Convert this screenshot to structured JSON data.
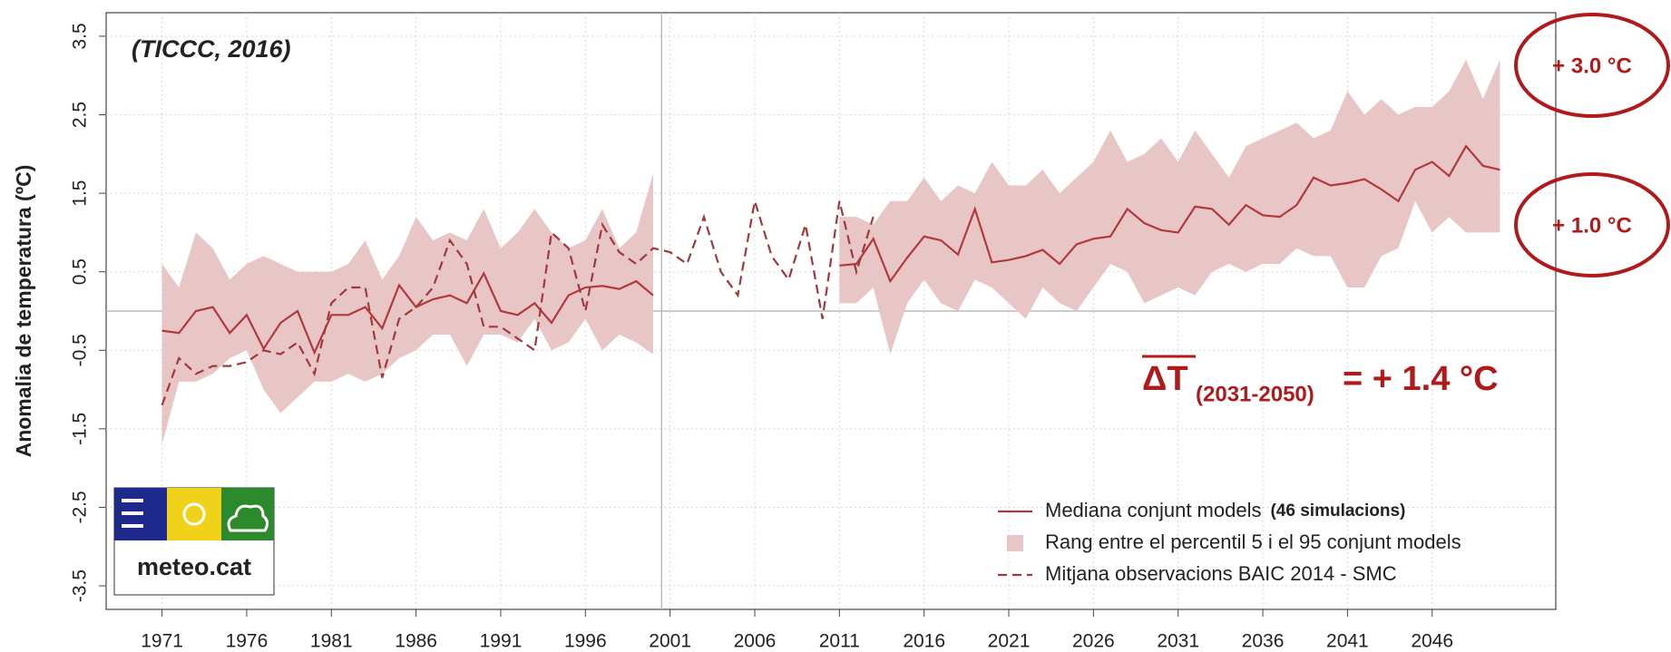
{
  "chart_data": {
    "type": "line",
    "title": "(TICCC, 2016)",
    "y_label": "Anomalia de temperatura (ºC)",
    "x": [
      1971,
      1972,
      1973,
      1974,
      1975,
      1976,
      1977,
      1978,
      1979,
      1980,
      1981,
      1982,
      1983,
      1984,
      1985,
      1986,
      1987,
      1988,
      1989,
      1990,
      1991,
      1992,
      1993,
      1994,
      1995,
      1996,
      1997,
      1998,
      1999,
      2000,
      2001,
      2002,
      2003,
      2004,
      2005,
      2006,
      2007,
      2008,
      2009,
      2010,
      2011,
      2012,
      2013,
      2014,
      2015,
      2016,
      2017,
      2018,
      2019,
      2020,
      2021,
      2022,
      2023,
      2024,
      2025,
      2026,
      2027,
      2028,
      2029,
      2030,
      2031,
      2032,
      2033,
      2034,
      2035,
      2036,
      2037,
      2038,
      2039,
      2040,
      2041,
      2042,
      2043,
      2044,
      2045,
      2046,
      2047,
      2048,
      2049,
      2050
    ],
    "band": {
      "name": "Rang entre el percentil 5 i el 95 conjunt models",
      "color": "#e9c6c6",
      "upper": [
        0.6,
        0.3,
        1.0,
        0.8,
        0.4,
        0.6,
        0.7,
        0.6,
        0.5,
        0.5,
        0.5,
        0.6,
        0.9,
        0.4,
        0.7,
        1.2,
        0.9,
        1.0,
        0.9,
        1.3,
        0.8,
        1.0,
        1.3,
        1.0,
        0.8,
        0.9,
        1.3,
        0.8,
        1.0,
        1.75,
        null,
        null,
        null,
        null,
        null,
        null,
        null,
        null,
        null,
        null,
        1.2,
        1.2,
        1.1,
        1.4,
        1.4,
        1.7,
        1.4,
        1.6,
        1.5,
        1.9,
        1.6,
        1.6,
        1.8,
        1.5,
        1.7,
        1.9,
        2.3,
        1.9,
        2.0,
        2.2,
        1.9,
        2.3,
        2.0,
        1.7,
        2.1,
        2.2,
        2.3,
        2.4,
        2.2,
        2.3,
        2.8,
        2.5,
        2.7,
        2.5,
        2.6,
        2.6,
        2.8,
        3.2,
        2.7,
        3.2
      ],
      "lower": [
        -1.7,
        -0.9,
        -0.9,
        -0.8,
        -0.6,
        -0.5,
        -1.0,
        -1.3,
        -1.1,
        -0.9,
        -0.9,
        -0.8,
        -0.9,
        -0.8,
        -0.6,
        -0.5,
        -0.3,
        -0.3,
        -0.7,
        -0.3,
        -0.3,
        -0.4,
        -0.1,
        -0.5,
        -0.4,
        -0.1,
        -0.5,
        -0.3,
        -0.4,
        -0.55,
        null,
        null,
        null,
        null,
        null,
        null,
        null,
        null,
        null,
        null,
        0.1,
        0.1,
        0.3,
        -0.55,
        0.1,
        0.4,
        0.1,
        0.0,
        0.4,
        0.3,
        0.1,
        -0.1,
        0.3,
        0.1,
        0.0,
        0.3,
        0.6,
        0.5,
        0.1,
        0.2,
        0.3,
        0.2,
        0.5,
        0.6,
        0.5,
        0.6,
        0.6,
        0.8,
        0.7,
        0.7,
        0.3,
        0.3,
        0.7,
        0.8,
        1.4,
        1.0,
        1.2,
        1.0,
        1.0,
        1.0
      ]
    },
    "series": [
      {
        "name": "Mediana conjunt models",
        "note": "(46 simulacions)",
        "color": "#b2393b",
        "dash": false,
        "values": [
          -0.25,
          -0.28,
          0.0,
          0.05,
          -0.28,
          -0.05,
          -0.48,
          -0.15,
          0.0,
          -0.53,
          -0.05,
          -0.05,
          0.05,
          -0.22,
          0.33,
          0.05,
          0.15,
          0.2,
          0.1,
          0.48,
          0.0,
          -0.05,
          0.1,
          -0.15,
          0.2,
          0.3,
          0.32,
          0.28,
          0.38,
          0.2,
          null,
          null,
          null,
          null,
          null,
          null,
          null,
          null,
          null,
          null,
          0.58,
          0.6,
          0.92,
          0.38,
          0.68,
          0.95,
          0.9,
          0.72,
          1.3,
          0.62,
          0.65,
          0.7,
          0.78,
          0.6,
          0.85,
          0.92,
          0.95,
          1.3,
          1.12,
          1.03,
          1.0,
          1.33,
          1.3,
          1.1,
          1.35,
          1.22,
          1.2,
          1.35,
          1.7,
          1.6,
          1.63,
          1.68,
          1.55,
          1.4,
          1.8,
          1.9,
          1.72,
          2.1,
          1.85,
          1.8
        ]
      },
      {
        "name": "Mitjana observacions BAIC 2014 - SMC",
        "color": "#a0393b",
        "dash": true,
        "values": [
          -1.2,
          -0.6,
          -0.8,
          -0.7,
          -0.7,
          -0.65,
          -0.5,
          -0.55,
          -0.4,
          -0.8,
          0.1,
          0.3,
          0.3,
          -0.85,
          -0.1,
          0.05,
          0.3,
          0.9,
          0.6,
          -0.2,
          -0.2,
          -0.35,
          -0.5,
          1.0,
          0.8,
          0.0,
          1.1,
          0.75,
          0.6,
          0.8,
          0.75,
          0.6,
          1.2,
          0.5,
          0.2,
          1.4,
          0.7,
          0.4,
          1.1,
          -0.1,
          1.4,
          0.5,
          1.2,
          null,
          null,
          null,
          null,
          null,
          null,
          null,
          null,
          null,
          null,
          null,
          null,
          null,
          null,
          null,
          null,
          null,
          null,
          null,
          null,
          null,
          null,
          null,
          null,
          null,
          null,
          null,
          null,
          null,
          null,
          null,
          null,
          null,
          null,
          null,
          null,
          null
        ]
      }
    ],
    "xlim": [
      1967.7,
      2053.3
    ],
    "ylim": [
      -3.8,
      3.8
    ],
    "xticks": [
      1971,
      1976,
      1981,
      1986,
      1991,
      1996,
      2001,
      2006,
      2011,
      2016,
      2021,
      2026,
      2031,
      2036,
      2041,
      2046
    ],
    "yticks": [
      -3.5,
      -2.5,
      -1.5,
      -0.5,
      0.5,
      1.5,
      2.5,
      3.5
    ],
    "grid": true,
    "reference_lines": {
      "x": 2000.5,
      "y": 0
    },
    "legend": "bottom-right",
    "annotations": {
      "end_high": "+ 3.0 °C",
      "end_low": "+ 1.0 °C",
      "delta_symbol": "ΔT",
      "delta_period": "(2031-2050)",
      "delta_value": "= + 1.4 °C"
    },
    "logo": "meteo.cat"
  }
}
